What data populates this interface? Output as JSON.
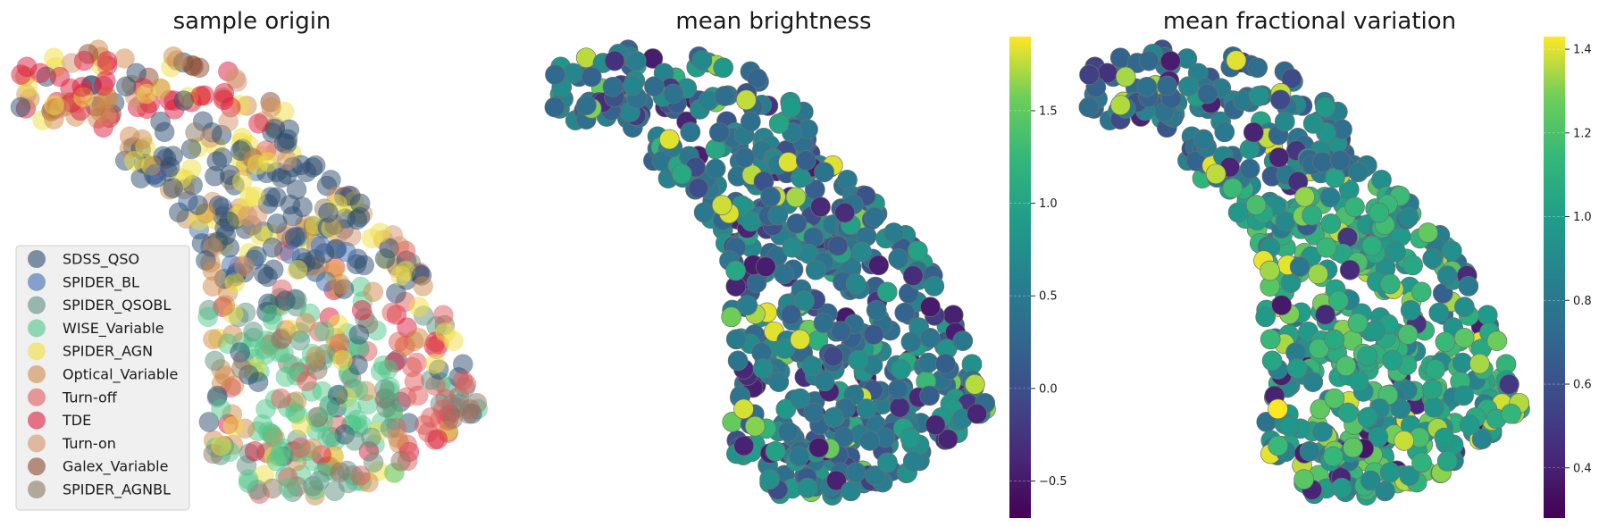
{
  "chart_data": [
    {
      "type": "scatter",
      "title": "sample origin",
      "legend": {
        "placement": "lower-left",
        "entries": [
          {
            "name": "SDSS_QSO",
            "color": "#2b4b6e"
          },
          {
            "name": "SPIDER_BL",
            "color": "#3d6ab2"
          },
          {
            "name": "SPIDER_QSOBL",
            "color": "#5e9080"
          },
          {
            "name": "WISE_Variable",
            "color": "#4fc78a"
          },
          {
            "name": "SPIDER_AGN",
            "color": "#f0e040"
          },
          {
            "name": "Optical_Variable",
            "color": "#cf8a4a"
          },
          {
            "name": "Turn-off",
            "color": "#e05a5a"
          },
          {
            "name": "TDE",
            "color": "#dc1c3c"
          },
          {
            "name": "Turn-on",
            "color": "#d4936e"
          },
          {
            "name": "Galex_Variable",
            "color": "#8a4a2e"
          },
          {
            "name": "SPIDER_AGNBL",
            "color": "#8a7660"
          }
        ]
      },
      "grid": false,
      "axes_visible": false
    },
    {
      "type": "scatter",
      "title": "mean brightness",
      "colormap": "viridis",
      "colorbar": {
        "min": -0.7,
        "max": 1.9,
        "ticks": [
          "−0.5",
          "0.0",
          "0.5",
          "1.0",
          "1.5"
        ],
        "tick_values": [
          -0.5,
          0.0,
          0.5,
          1.0,
          1.5
        ]
      },
      "grid": false,
      "axes_visible": false
    },
    {
      "type": "scatter",
      "title": "mean fractional variation",
      "colormap": "viridis",
      "colorbar": {
        "min": 0.28,
        "max": 1.43,
        "ticks": [
          "0.4",
          "0.6",
          "0.8",
          "1.0",
          "1.2",
          "1.4"
        ],
        "tick_values": [
          0.4,
          0.6,
          0.8,
          1.0,
          1.2,
          1.4
        ]
      },
      "grid": false,
      "axes_visible": false
    }
  ]
}
